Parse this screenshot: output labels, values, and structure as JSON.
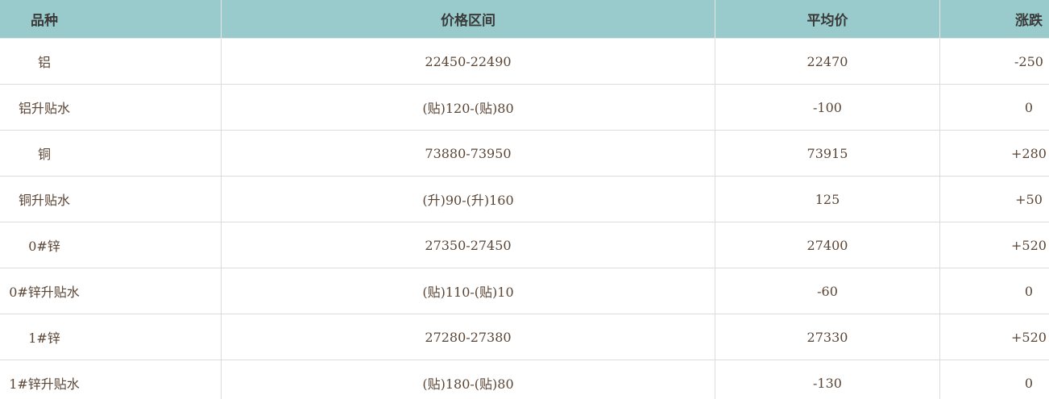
{
  "table": {
    "headers": [
      "品种",
      "价格区间",
      "平均价",
      "涨跌"
    ],
    "rows": [
      [
        "铝",
        "22450-22490",
        "22470",
        "-250"
      ],
      [
        "铝升贴水",
        "(贴)120-(贴)80",
        "-100",
        "0"
      ],
      [
        "铜",
        "73880-73950",
        "73915",
        "+280"
      ],
      [
        "铜升贴水",
        "(升)90-(升)160",
        "125",
        "+50"
      ],
      [
        "0#锌",
        "27350-27450",
        "27400",
        "+520"
      ],
      [
        "0#锌升贴水",
        "(贴)110-(贴)10",
        "-60",
        "0"
      ],
      [
        "1#锌",
        "27280-27380",
        "27330",
        "+520"
      ],
      [
        "1#锌升贴水",
        "(贴)180-(贴)80",
        "-130",
        "0"
      ]
    ]
  },
  "colors": {
    "header_bg": "#9acbcc",
    "text": "#5b4636"
  }
}
